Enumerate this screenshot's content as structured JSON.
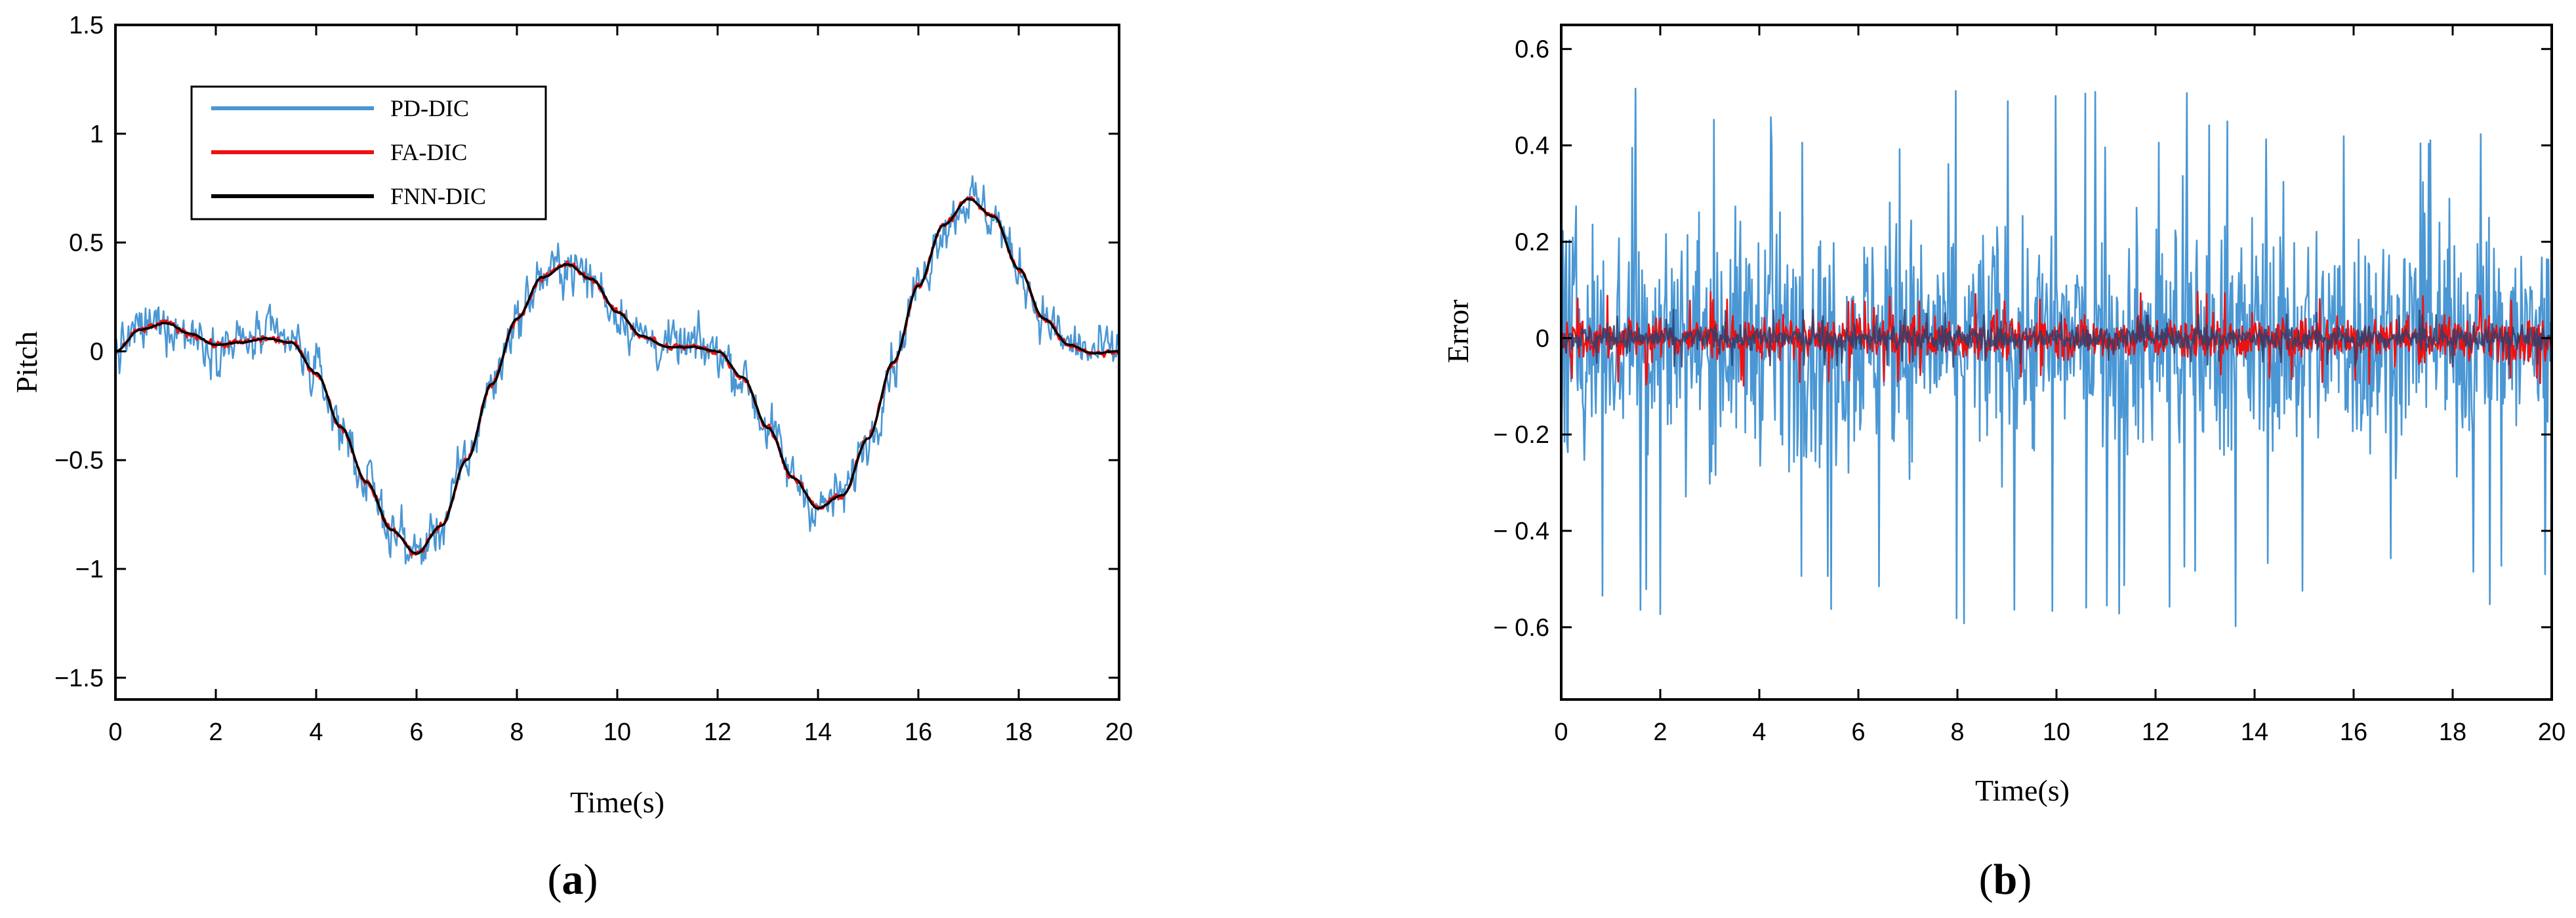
{
  "chart_data": [
    {
      "type": "line",
      "panel_label": {
        "open": "(",
        "letter": "a",
        "close": ")"
      },
      "xlabel": "Time(s)",
      "ylabel": "Pitch",
      "xlim": [
        0,
        20
      ],
      "ylim": [
        -1.6,
        1.5
      ],
      "x_ticks": [
        0,
        2,
        4,
        6,
        8,
        10,
        12,
        14,
        16,
        18,
        20
      ],
      "y_ticks": [
        -1.5,
        -1,
        -0.5,
        0,
        0.5,
        1,
        1.5
      ],
      "x_tick_labels": [
        "0",
        "2",
        "4",
        "6",
        "8",
        "10",
        "12",
        "14",
        "16",
        "18",
        "20"
      ],
      "y_tick_labels": [
        "−1.5",
        "−1",
        "−0.5",
        "0",
        "0.5",
        "1",
        "1.5"
      ],
      "grid": false,
      "legend_position": "top-left",
      "series": [
        {
          "name": "PD-DIC",
          "color": "#4a97d4",
          "noise_amplitude": 0.18
        },
        {
          "name": "FA-DIC",
          "color": "#ee1111",
          "noise_amplitude": 0.025
        },
        {
          "name": "FNN-DIC",
          "color": "#000000",
          "noise_amplitude": 0.004
        }
      ],
      "reference_curve": {
        "x": [
          0,
          0.5,
          1,
          1.5,
          2,
          2.5,
          3,
          3.5,
          4,
          4.5,
          5,
          5.5,
          6,
          6.5,
          7,
          7.5,
          8,
          8.5,
          9,
          9.5,
          10,
          10.5,
          11,
          11.5,
          12,
          12.5,
          13,
          13.5,
          14,
          14.5,
          15,
          15.5,
          16,
          16.5,
          17,
          17.5,
          18,
          18.5,
          19,
          19.5,
          20
        ],
        "y": [
          0,
          0.1,
          0.13,
          0.08,
          0.03,
          0.04,
          0.06,
          0.04,
          -0.1,
          -0.35,
          -0.6,
          -0.82,
          -0.93,
          -0.8,
          -0.5,
          -0.15,
          0.15,
          0.34,
          0.4,
          0.33,
          0.18,
          0.07,
          0.02,
          0.02,
          0.0,
          -0.12,
          -0.35,
          -0.58,
          -0.72,
          -0.66,
          -0.4,
          -0.05,
          0.3,
          0.58,
          0.7,
          0.62,
          0.38,
          0.15,
          0.03,
          -0.01,
          0.0
        ]
      }
    },
    {
      "type": "line",
      "panel_label": {
        "open": "(",
        "letter": "b",
        "close": ")"
      },
      "xlabel": "Time(s)",
      "ylabel": "Error",
      "xlim": [
        0,
        20
      ],
      "ylim": [
        -0.75,
        0.65
      ],
      "x_ticks": [
        0,
        2,
        4,
        6,
        8,
        10,
        12,
        14,
        16,
        18,
        20
      ],
      "y_ticks": [
        -0.6,
        -0.4,
        -0.2,
        0,
        0.2,
        0.4,
        0.6
      ],
      "x_tick_labels": [
        "0",
        "2",
        "4",
        "6",
        "8",
        "10",
        "12",
        "14",
        "16",
        "18",
        "20"
      ],
      "y_tick_labels": [
        "− 0.6",
        "− 0.4",
        "− 0.2",
        "0",
        "0.2",
        "0.4",
        "0.6"
      ],
      "grid": false,
      "series": [
        {
          "name": "PD-DIC",
          "color": "#4a97d4",
          "range": [
            -0.6,
            0.52
          ]
        },
        {
          "name": "FA-DIC",
          "color": "#ee1111",
          "range": [
            -0.1,
            0.1
          ]
        },
        {
          "name": "FNN-DIC",
          "color": "#2b3f6e",
          "range": [
            -0.06,
            0.06
          ]
        }
      ]
    }
  ]
}
